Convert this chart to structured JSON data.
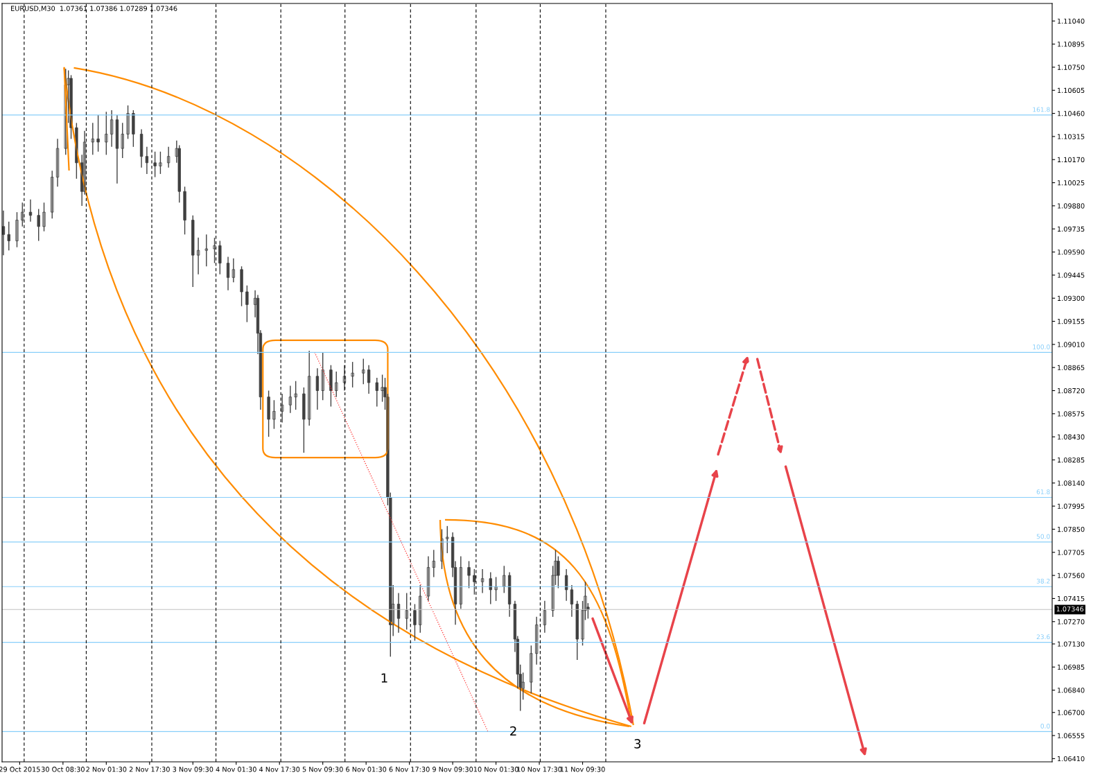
{
  "chart_data": {
    "type": "candlestick",
    "title": "EURUSD,M30  1.07361 1.07386 1.07289 1.07346",
    "color": "#404040",
    "categories": [
      null,
      null,
      null,
      null,
      null,
      null,
      "29 Oct 2015",
      null,
      null,
      null,
      null,
      null,
      null,
      null,
      null,
      null,
      null,
      null,
      null,
      null,
      null,
      null,
      "30 Oct 08:30",
      null,
      null,
      null,
      null,
      null,
      null,
      null,
      null,
      null,
      null,
      null,
      null,
      null,
      null,
      null,
      "2 Nov 01:30",
      null,
      null,
      null,
      null,
      null,
      null,
      null,
      null,
      null,
      null,
      null,
      null,
      null,
      null,
      null,
      "2 Nov 17:30",
      null,
      null,
      null,
      null,
      null,
      null,
      null,
      null,
      null,
      null,
      null,
      null,
      null,
      null,
      null,
      "3 Nov 09:30",
      null,
      null,
      null,
      null,
      null,
      null,
      null,
      null,
      null,
      null,
      null,
      null,
      null,
      null,
      null,
      "4 Nov 01:30",
      null,
      null,
      null,
      null,
      null,
      null,
      null,
      null,
      null,
      null,
      null,
      null,
      null,
      null,
      null,
      "4 Nov 17:30",
      null,
      null,
      null,
      null,
      null,
      null,
      null,
      null,
      null,
      null,
      null,
      null,
      null,
      null,
      null,
      "5 Nov 09:30",
      null,
      null,
      null,
      null,
      null,
      null,
      null,
      null,
      null,
      null,
      null,
      null,
      null,
      null,
      null,
      "6 Nov 01:30",
      null,
      null,
      null,
      null,
      null,
      null,
      null,
      null,
      null,
      null,
      null,
      null,
      null,
      null,
      null,
      "6 Nov 17:30",
      null,
      null,
      null,
      null,
      null,
      null,
      null,
      null,
      null,
      null,
      null,
      null,
      null,
      null,
      null,
      "9 Nov 09:30",
      null,
      null,
      null,
      null,
      null,
      null,
      null,
      null,
      null,
      null,
      null,
      null,
      null,
      null,
      null,
      "10 Nov 01:30",
      null,
      null,
      null,
      null,
      null,
      null,
      null,
      null,
      null,
      null,
      null,
      null,
      null,
      null,
      null,
      "10 Nov 17:30",
      null,
      null,
      null,
      null,
      null,
      null,
      null,
      null,
      null,
      null,
      null,
      null,
      null,
      null,
      null,
      "11 Nov 09:30",
      null,
      null,
      null,
      null,
      null,
      null,
      null,
      null,
      null,
      null,
      null,
      null,
      null,
      null,
      null,
      null,
      null,
      null,
      null,
      null,
      null,
      null,
      null,
      null,
      null,
      null,
      null,
      null,
      null,
      null,
      null,
      null,
      null,
      null,
      null,
      null,
      null,
      null,
      null,
      null,
      null,
      null,
      null,
      null,
      null,
      null,
      null,
      null,
      null,
      null,
      null,
      null,
      null,
      null,
      null,
      null,
      null,
      null,
      null,
      null,
      null,
      null,
      null,
      null,
      null,
      null,
      null,
      null,
      null,
      null,
      null,
      null,
      null,
      null,
      null,
      null,
      null,
      null,
      null,
      null,
      null,
      null,
      null,
      null,
      null,
      null,
      null,
      null,
      null,
      null,
      null,
      null,
      null,
      null,
      null,
      null,
      null,
      null,
      null,
      null,
      null,
      null,
      null,
      null,
      null,
      null,
      null,
      null,
      null,
      null,
      null,
      null,
      null,
      null,
      null,
      null,
      null,
      null,
      null,
      null,
      null,
      null,
      null,
      null,
      null,
      null,
      null,
      null,
      null,
      null,
      null,
      null,
      null,
      null,
      null,
      null,
      null,
      null,
      null,
      null,
      null,
      null,
      null,
      null,
      null,
      null,
      null,
      null,
      null,
      null,
      null,
      null,
      null,
      null,
      null,
      null,
      null,
      null,
      null,
      null,
      null,
      null,
      null,
      null,
      null,
      null,
      null,
      null,
      null,
      null,
      null,
      null,
      null
    ],
    "ohlc": [
      [
        1.0975,
        1.0985,
        1.0957,
        1.097
      ],
      null,
      [
        1.097,
        1.0978,
        1.096,
        1.0966
      ],
      null,
      null,
      [
        1.0966,
        1.0984,
        1.0962,
        1.0979
      ],
      null,
      [
        1.0979,
        1.099,
        1.0975,
        1.0984
      ],
      null,
      null,
      [
        1.0984,
        1.0992,
        1.0978,
        1.0982
      ],
      null,
      null,
      [
        1.0982,
        1.0986,
        1.0966,
        1.0975
      ],
      null,
      [
        1.0975,
        1.099,
        1.0972,
        1.0984
      ],
      null,
      null,
      [
        1.0984,
        1.101,
        1.098,
        1.1006
      ],
      null,
      [
        1.1006,
        1.103,
        1.1,
        1.1024
      ],
      null,
      null,
      [
        1.1024,
        1.1074,
        1.102,
        1.1064
      ],
      [
        1.1064,
        1.1073,
        1.104,
        1.1068
      ],
      [
        1.1068,
        1.107,
        1.103,
        1.1037
      ],
      null,
      [
        1.1037,
        1.104,
        1.1005,
        1.1015
      ],
      null,
      [
        1.1015,
        1.102,
        1.0988,
        1.0997
      ],
      [
        1.0997,
        1.1035,
        1.0995,
        1.1028
      ],
      null,
      null,
      [
        1.1028,
        1.104,
        1.102,
        1.103
      ],
      null,
      [
        1.103,
        1.1045,
        1.1022,
        1.1028
      ],
      null,
      null,
      [
        1.1028,
        1.1047,
        1.102,
        1.1033
      ],
      null,
      [
        1.1033,
        1.1048,
        1.1025,
        1.1042
      ],
      null,
      [
        1.1042,
        1.1045,
        1.1002,
        1.1024
      ],
      null,
      [
        1.1024,
        1.104,
        1.1018,
        1.1033
      ],
      null,
      [
        1.1033,
        1.1051,
        1.103,
        1.1046
      ],
      null,
      [
        1.1046,
        1.1048,
        1.1025,
        1.1033
      ],
      null,
      null,
      [
        1.1033,
        1.1036,
        1.1012,
        1.1019
      ],
      null,
      [
        1.1019,
        1.1025,
        1.1008,
        1.1015
      ],
      null,
      null,
      [
        1.1015,
        1.1022,
        1.1006,
        1.1013
      ],
      null,
      [
        1.1013,
        1.1022,
        1.1008,
        1.1015
      ],
      null,
      null,
      [
        1.1015,
        1.1025,
        1.1012,
        1.1019
      ],
      null,
      null,
      [
        1.1019,
        1.1029,
        1.1015,
        1.1024
      ],
      [
        1.1024,
        1.1026,
        1.099,
        1.0997
      ],
      null,
      [
        1.0997,
        1.1,
        1.097,
        1.0979
      ],
      null,
      null,
      [
        1.0979,
        1.0982,
        1.0937,
        1.0957
      ],
      null,
      [
        1.0957,
        1.0968,
        1.0945,
        1.096
      ],
      null,
      null,
      [
        1.096,
        1.097,
        1.095,
        1.0961
      ],
      null,
      null,
      [
        1.0961,
        1.0968,
        1.0952,
        1.0963
      ],
      null,
      [
        1.0963,
        1.0966,
        1.0945,
        1.0952
      ],
      null,
      null,
      [
        1.0952,
        1.0956,
        1.0935,
        1.0943
      ],
      null,
      [
        1.0943,
        1.0955,
        1.094,
        1.0948
      ],
      null,
      null,
      [
        1.0948,
        1.095,
        1.0925,
        1.0934
      ],
      null,
      [
        1.0934,
        1.0938,
        1.0915,
        1.0926
      ],
      null,
      null,
      [
        1.0926,
        1.0935,
        1.0918,
        1.093
      ],
      [
        1.093,
        1.0932,
        1.0895,
        1.0908
      ],
      [
        1.0908,
        1.091,
        1.086,
        1.0868
      ],
      null,
      null,
      [
        1.0868,
        1.0872,
        1.0843,
        1.0854
      ],
      null,
      [
        1.0854,
        1.0866,
        1.0848,
        1.0859
      ],
      null,
      null,
      [
        1.0859,
        1.087,
        1.0852,
        1.0863
      ],
      null,
      null,
      [
        1.0863,
        1.0875,
        1.0858,
        1.0868
      ],
      null,
      [
        1.0868,
        1.0878,
        1.086,
        1.087
      ],
      null,
      null,
      [
        1.087,
        1.0874,
        1.0833,
        1.0854
      ],
      null,
      [
        1.0854,
        1.0897,
        1.085,
        1.0881
      ],
      null,
      null,
      [
        1.0881,
        1.0886,
        1.086,
        1.0872
      ],
      null,
      [
        1.0872,
        1.0896,
        1.0866,
        1.0885
      ],
      null,
      null,
      [
        1.0885,
        1.0888,
        1.0862,
        1.0872
      ],
      null,
      [
        1.0872,
        1.0884,
        1.0868,
        1.0877
      ],
      null,
      null,
      [
        1.0877,
        1.0888,
        1.0872,
        1.0881
      ],
      null,
      null,
      [
        1.0881,
        1.089,
        1.0874,
        1.0883
      ],
      null,
      null,
      null,
      [
        1.0883,
        1.0892,
        1.0876,
        1.0885
      ],
      null,
      [
        1.0885,
        1.0888,
        1.087,
        1.0877
      ],
      null,
      null,
      [
        1.0877,
        1.088,
        1.0862,
        1.0872
      ],
      null,
      [
        1.0872,
        1.0882,
        1.0865,
        1.0874
      ],
      [
        1.0874,
        1.088,
        1.086,
        1.0868
      ],
      [
        1.0868,
        1.087,
        1.08,
        1.0805
      ],
      [
        1.0805,
        1.0808,
        1.0705,
        1.0725
      ],
      [
        1.0725,
        1.075,
        1.0718,
        1.0738
      ],
      null,
      [
        1.0738,
        1.0745,
        1.072,
        1.0729
      ],
      null,
      null,
      [
        1.0729,
        1.0745,
        1.0722,
        1.0734
      ],
      null,
      null,
      [
        1.0734,
        1.0738,
        1.0715,
        1.0725
      ],
      null,
      [
        1.0725,
        1.075,
        1.072,
        1.0743
      ],
      null,
      null,
      [
        1.0743,
        1.0768,
        1.074,
        1.0761
      ],
      null,
      [
        1.0761,
        1.0772,
        1.0755,
        1.0765
      ],
      null,
      null,
      [
        1.0765,
        1.0785,
        1.076,
        1.0779
      ],
      null,
      [
        1.0779,
        1.0787,
        1.077,
        1.078
      ],
      null,
      [
        1.078,
        1.0783,
        1.0755,
        1.0761
      ],
      [
        1.0761,
        1.0765,
        1.0725,
        1.0738
      ],
      null,
      [
        1.0738,
        1.0768,
        1.0735,
        1.0761
      ],
      null,
      null,
      [
        1.0761,
        1.0765,
        1.0748,
        1.0756
      ],
      null,
      [
        1.0756,
        1.076,
        1.0744,
        1.0752
      ],
      null,
      null,
      [
        1.0752,
        1.076,
        1.0745,
        1.0754
      ],
      null,
      null,
      [
        1.0754,
        1.0758,
        1.0738,
        1.0747
      ],
      null,
      [
        1.0747,
        1.0755,
        1.074,
        1.0749
      ],
      null,
      null,
      [
        1.0749,
        1.0762,
        1.0745,
        1.0756
      ],
      null,
      [
        1.0756,
        1.0758,
        1.073,
        1.0738
      ],
      null,
      [
        1.0738,
        1.074,
        1.0708,
        1.0716
      ],
      [
        1.0716,
        1.0718,
        1.0685,
        1.0694
      ],
      [
        1.0694,
        1.07,
        1.0671,
        1.0685
      ],
      [
        1.0685,
        1.0695,
        1.0678,
        1.0689
      ],
      null,
      null,
      [
        1.0689,
        1.0712,
        1.0682,
        1.0707
      ],
      null,
      [
        1.0707,
        1.073,
        1.07,
        1.0725
      ],
      null,
      null,
      [
        1.0725,
        1.074,
        1.072,
        1.0734
      ],
      null,
      null,
      [
        1.0734,
        1.0762,
        1.073,
        1.0756
      ],
      [
        1.0756,
        1.0772,
        1.075,
        1.0765
      ],
      [
        1.0765,
        1.0768,
        1.0748,
        1.0756
      ],
      null,
      null,
      [
        1.0756,
        1.076,
        1.074,
        1.0747
      ],
      null,
      [
        1.0747,
        1.075,
        1.073,
        1.0738
      ],
      null,
      [
        1.0738,
        1.074,
        1.0703,
        1.0716
      ],
      null,
      [
        1.0716,
        1.074,
        1.0712,
        1.0734
      ],
      [
        1.0734,
        1.0752,
        1.0728,
        1.0743
      ],
      [
        1.07361,
        1.07386,
        1.07289,
        1.07346
      ],
      null,
      null,
      null,
      null,
      null,
      null,
      null,
      null,
      null,
      null,
      null,
      null,
      null,
      null,
      null,
      null,
      null,
      null,
      null,
      null,
      null,
      null,
      null,
      null,
      null,
      null,
      null,
      null,
      null,
      null,
      null,
      null,
      null,
      null,
      null,
      null,
      null,
      null,
      null,
      null,
      null,
      null,
      null,
      null,
      null,
      null,
      null,
      null,
      null,
      null,
      null,
      null,
      null,
      null,
      null,
      null,
      null,
      null,
      null,
      null,
      null,
      null,
      null,
      null,
      null,
      null,
      null,
      null,
      null,
      null,
      null,
      null,
      null,
      null,
      null,
      null,
      null,
      null,
      null,
      null,
      null,
      null,
      null,
      null,
      null,
      null,
      null,
      null,
      null,
      null,
      null,
      null,
      null,
      null,
      null,
      null,
      null,
      null,
      null,
      null,
      null,
      null,
      null,
      null,
      null,
      null,
      null,
      null,
      null,
      null,
      null,
      null,
      null,
      null,
      null,
      null,
      null,
      null,
      null,
      null,
      null,
      null,
      null,
      null,
      null,
      null,
      null,
      null,
      null,
      null,
      null,
      null,
      null,
      null,
      null,
      null,
      null,
      null,
      null,
      null,
      null,
      null,
      null,
      null,
      null,
      null,
      null,
      null,
      null,
      null,
      null,
      null,
      null,
      null,
      null,
      null,
      null,
      null,
      null,
      null,
      null,
      null,
      null,
      null,
      null,
      null,
      null,
      null,
      null,
      null,
      null
    ],
    "series": [
      {
        "type": "line",
        "color": "#ff3030",
        "line_style": "dotted",
        "values": [
          null,
          null,
          null,
          null,
          null,
          null,
          null,
          null,
          null,
          null,
          null,
          null,
          null,
          null,
          null,
          null,
          null,
          null,
          null,
          null,
          null,
          null,
          null,
          null,
          null,
          null,
          null,
          null,
          null,
          null,
          null,
          null,
          null,
          null,
          null,
          null,
          null,
          null,
          null,
          null,
          null,
          null,
          null,
          null,
          null,
          null,
          null,
          null,
          null,
          null,
          null,
          null,
          null,
          null,
          null,
          null,
          null,
          null,
          null,
          null,
          null,
          null,
          null,
          null,
          null,
          null,
          null,
          null,
          null,
          null,
          null,
          null,
          null,
          null,
          null,
          null,
          null,
          null,
          null,
          null,
          null,
          null,
          null,
          null,
          null,
          null,
          null,
          null,
          null,
          null,
          null,
          null,
          null,
          null,
          null,
          null,
          null,
          null,
          null,
          null,
          null,
          null,
          null,
          null,
          null,
          null,
          null,
          null,
          null,
          null,
          null,
          null,
          null,
          null,
          null,
          1.0896,
          null,
          null,
          null,
          null,
          null,
          null,
          null,
          null,
          null,
          null,
          null,
          null,
          null,
          null,
          null,
          null,
          null,
          null,
          null,
          null,
          null,
          null,
          null,
          null,
          null,
          null,
          null,
          null,
          null,
          null,
          null,
          null,
          null,
          null,
          null,
          null,
          null,
          null,
          null,
          null,
          null,
          null,
          null,
          null,
          null,
          null,
          null,
          null,
          null,
          null,
          null,
          null,
          null,
          null,
          null,
          null,
          null,
          null,
          null,
          null,
          null,
          null,
          null,
          1.0658,
          null,
          null,
          null,
          null,
          null,
          null,
          null,
          null,
          null,
          null,
          null,
          null,
          null,
          null,
          null,
          null,
          null,
          null,
          null,
          null,
          null,
          null,
          null,
          null,
          null,
          null,
          null,
          null,
          null,
          null,
          null,
          null,
          null,
          null,
          null,
          null,
          null,
          null,
          null,
          null,
          null,
          null,
          null,
          null,
          null,
          null,
          null,
          null,
          null,
          null,
          null,
          null,
          null,
          null,
          null,
          null,
          null,
          null,
          null,
          null,
          null,
          null,
          null,
          null,
          null,
          null,
          null,
          null,
          null,
          null,
          null,
          null,
          null,
          null,
          null,
          null,
          null,
          null,
          null,
          null,
          null,
          null,
          null,
          null,
          null,
          null,
          null,
          null,
          null,
          null,
          null,
          null,
          null,
          null,
          null,
          null,
          null,
          null,
          null,
          null,
          null,
          null,
          null,
          null,
          null,
          null,
          null,
          null,
          null,
          null,
          null,
          null,
          null,
          null,
          null,
          null,
          null,
          null,
          null,
          null,
          null,
          null,
          null,
          null,
          null,
          null,
          null,
          null,
          null,
          null,
          null,
          null,
          null,
          null,
          null,
          null,
          null,
          null,
          null,
          null,
          null,
          null,
          null,
          null,
          null,
          null,
          null,
          null,
          null,
          null,
          null,
          null,
          null,
          null,
          null,
          null,
          null,
          null,
          null,
          null,
          null,
          null,
          null,
          null,
          null,
          null,
          null,
          null,
          null,
          null,
          null,
          null,
          null,
          null,
          null,
          null,
          null,
          null,
          null,
          null,
          null,
          null,
          null,
          null,
          null,
          null,
          null,
          null,
          null,
          null,
          null,
          null,
          null,
          null,
          null,
          null,
          null,
          null,
          null,
          null,
          null,
          null,
          null,
          null,
          null,
          null,
          null,
          null
        ]
      }
    ],
    "ylim": [
      1.0639,
      1.1115
    ],
    "yticks": [
      {
        "value": 1.0641,
        "label": "1.06410"
      },
      {
        "value": 1.06555,
        "label": "1.06555"
      },
      {
        "value": 1.067,
        "label": "1.06700"
      },
      {
        "value": 1.0684,
        "label": "1.06840"
      },
      {
        "value": 1.06985,
        "label": "1.06985"
      },
      {
        "value": 1.0713,
        "label": "1.07130"
      },
      {
        "value": 1.0727,
        "label": "1.07270"
      },
      {
        "value": 1.07415,
        "label": "1.07415"
      },
      {
        "value": 1.0756,
        "label": "1.07560"
      },
      {
        "value": 1.07705,
        "label": "1.07705"
      },
      {
        "value": 1.0785,
        "label": "1.07850"
      },
      {
        "value": 1.07995,
        "label": "1.07995"
      },
      {
        "value": 1.0814,
        "label": "1.08140"
      },
      {
        "value": 1.08285,
        "label": "1.08285"
      },
      {
        "value": 1.0843,
        "label": "1.08430"
      },
      {
        "value": 1.08575,
        "label": "1.08575"
      },
      {
        "value": 1.0872,
        "label": "1.08720"
      },
      {
        "value": 1.08865,
        "label": "1.08865"
      },
      {
        "value": 1.0901,
        "label": "1.09010"
      },
      {
        "value": 1.09155,
        "label": "1.09155"
      },
      {
        "value": 1.093,
        "label": "1.09300"
      },
      {
        "value": 1.09445,
        "label": "1.09445"
      },
      {
        "value": 1.0959,
        "label": "1.09590"
      },
      {
        "value": 1.09735,
        "label": "1.09735"
      },
      {
        "value": 1.0988,
        "label": "1.09880"
      },
      {
        "value": 1.10025,
        "label": "1.10025"
      },
      {
        "value": 1.1017,
        "label": "1.10170"
      },
      {
        "value": 1.10315,
        "label": "1.10315"
      },
      {
        "value": 1.1046,
        "label": "1.10460"
      },
      {
        "value": 1.10605,
        "label": "1.10605"
      },
      {
        "value": 1.1075,
        "label": "1.10750"
      },
      {
        "value": 1.10895,
        "label": "1.10895"
      },
      {
        "value": 1.1104,
        "label": "1.11040"
      }
    ],
    "ref_lines": [
      {
        "axis": "y",
        "value": 1.1045,
        "color": "#87cefa",
        "line_style": "solid"
      },
      {
        "axis": "y",
        "value": 1.0896,
        "color": "#87cefa",
        "line_style": "solid"
      },
      {
        "axis": "y",
        "value": 1.0805,
        "color": "#87cefa",
        "line_style": "solid"
      },
      {
        "axis": "y",
        "value": 1.0777,
        "color": "#87cefa",
        "line_style": "solid"
      },
      {
        "axis": "y",
        "value": 1.0749,
        "color": "#87cefa",
        "line_style": "solid"
      },
      {
        "axis": "y",
        "value": 1.0714,
        "color": "#87cefa",
        "line_style": "solid"
      },
      {
        "axis": "y",
        "value": 1.0658,
        "color": "#87cefa",
        "line_style": "solid"
      },
      {
        "axis": "y",
        "value": 1.07346,
        "label": "1.07346",
        "color": "#c0c0c0",
        "line_style": "solid"
      }
    ],
    "annotations": [
      {
        "text": "161.8",
        "y": 1.1045
      },
      {
        "text": "100.0",
        "y": 1.0896
      },
      {
        "text": "61.8",
        "y": 1.0805
      },
      {
        "text": "50.0",
        "y": 1.0777
      },
      {
        "text": "38.2",
        "y": 1.0749
      },
      {
        "text": "23.6",
        "y": 1.0714
      },
      {
        "text": "0.0",
        "y": 1.0658
      },
      "1",
      "2",
      "3"
    ]
  }
}
